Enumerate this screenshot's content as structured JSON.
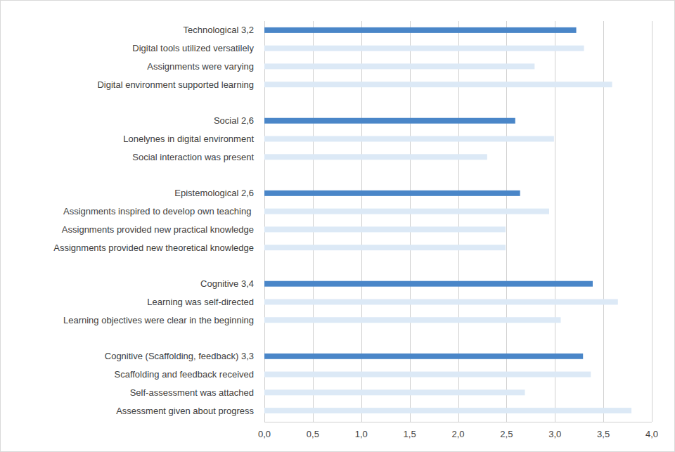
{
  "chart_data": {
    "type": "bar",
    "orientation": "horizontal",
    "grid": true,
    "categories": [
      "Technological 3,2",
      "Digital tools utilized versatilely",
      "Assignments were varying",
      "Digital environment supported learning",
      null,
      "Social 2,6",
      "Lonelynes in digital environment",
      "Social interaction was present",
      null,
      "Epistemological 2,6",
      "Assignments inspired to develop own teaching ",
      "Assignments provided new practical knowledge",
      "Assignments provided new theoretical knowledge",
      null,
      "Cognitive 3,4",
      "Learning was self-directed",
      "Learning objectives were clear in the beginning",
      null,
      "Cognitive (Scaffolding, feedback) 3,3",
      "Scaffolding and feedback received",
      "Self-assessment was attached",
      "Assessment given about progress"
    ],
    "values": [
      3.22,
      3.3,
      2.79,
      3.59,
      null,
      2.59,
      2.99,
      2.3,
      null,
      2.64,
      2.94,
      2.49,
      2.49,
      null,
      3.39,
      3.65,
      3.06,
      null,
      3.29,
      3.37,
      2.69,
      3.79
    ],
    "colors": [
      "#4a86c8",
      "#dce9f6",
      "#dce9f6",
      "#dce9f6",
      null,
      "#4a86c8",
      "#dce9f6",
      "#dce9f6",
      null,
      "#4a86c8",
      "#dce9f6",
      "#dce9f6",
      "#dce9f6",
      null,
      "#4a86c8",
      "#dce9f6",
      "#dce9f6",
      null,
      "#4a86c8",
      "#dce9f6",
      "#dce9f6",
      "#dce9f6"
    ],
    "xlim": [
      0,
      4
    ],
    "xticks": [
      {
        "value": 0,
        "label": "0,0"
      },
      {
        "value": 0.5,
        "label": "0,5"
      },
      {
        "value": 1,
        "label": "1,0"
      },
      {
        "value": 1.5,
        "label": "1,5"
      },
      {
        "value": 2,
        "label": "2,0"
      },
      {
        "value": 2.5,
        "label": "2,5"
      },
      {
        "value": 3,
        "label": "3,0"
      },
      {
        "value": 3.5,
        "label": "3,5"
      },
      {
        "value": 4,
        "label": "4,0"
      }
    ]
  }
}
